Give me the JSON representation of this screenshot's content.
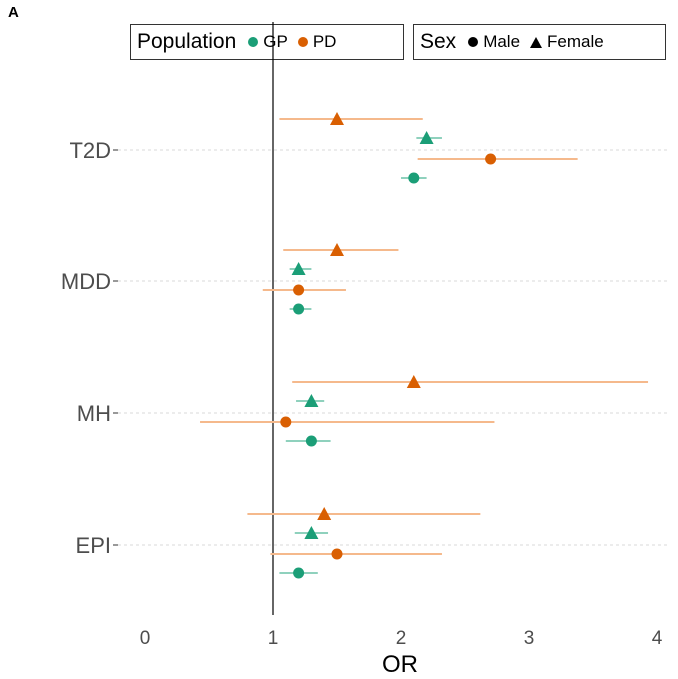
{
  "panel_label": "A",
  "legend": {
    "population_title": "Population",
    "population_items": [
      {
        "label": "GP",
        "color": "#1b9e77"
      },
      {
        "label": "PD",
        "color": "#d95f02"
      }
    ],
    "sex_title": "Sex",
    "sex_items": [
      {
        "label": "Male",
        "shape": "circle"
      },
      {
        "label": "Female",
        "shape": "triangle"
      }
    ]
  },
  "chart_data": {
    "type": "scatter",
    "xlabel": "OR",
    "ylabel": "",
    "xlim": [
      0,
      4
    ],
    "xticks": [
      "0",
      "1",
      "2",
      "3",
      "4"
    ],
    "reference_line": 1,
    "categories": [
      "T2D",
      "MDD",
      "MH",
      "EPI"
    ],
    "colors": {
      "GP": "#1b9e77",
      "PD": "#d95f02"
    },
    "series": [
      {
        "name": "PD",
        "sex": "Female",
        "points": [
          {
            "category": "T2D",
            "or": 1.5,
            "lo": 1.05,
            "hi": 2.17
          },
          {
            "category": "MDD",
            "or": 1.5,
            "lo": 1.08,
            "hi": 1.98
          },
          {
            "category": "MH",
            "or": 2.1,
            "lo": 1.15,
            "hi": 3.93
          },
          {
            "category": "EPI",
            "or": 1.4,
            "lo": 0.8,
            "hi": 2.62
          }
        ]
      },
      {
        "name": "GP",
        "sex": "Female",
        "points": [
          {
            "category": "T2D",
            "or": 2.2,
            "lo": 2.12,
            "hi": 2.32
          },
          {
            "category": "MDD",
            "or": 1.2,
            "lo": 1.13,
            "hi": 1.3
          },
          {
            "category": "MH",
            "or": 1.3,
            "lo": 1.18,
            "hi": 1.4
          },
          {
            "category": "EPI",
            "or": 1.3,
            "lo": 1.17,
            "hi": 1.43
          }
        ]
      },
      {
        "name": "PD",
        "sex": "Male",
        "points": [
          {
            "category": "T2D",
            "or": 2.7,
            "lo": 2.13,
            "hi": 3.38
          },
          {
            "category": "MDD",
            "or": 1.2,
            "lo": 0.92,
            "hi": 1.57
          },
          {
            "category": "MH",
            "or": 1.1,
            "lo": 0.43,
            "hi": 2.73
          },
          {
            "category": "EPI",
            "or": 1.5,
            "lo": 0.98,
            "hi": 2.32
          }
        ]
      },
      {
        "name": "GP",
        "sex": "Male",
        "points": [
          {
            "category": "T2D",
            "or": 2.1,
            "lo": 2.0,
            "hi": 2.2
          },
          {
            "category": "MDD",
            "or": 1.2,
            "lo": 1.13,
            "hi": 1.3
          },
          {
            "category": "MH",
            "or": 1.3,
            "lo": 1.1,
            "hi": 1.45
          },
          {
            "category": "EPI",
            "or": 1.2,
            "lo": 1.05,
            "hi": 1.35
          }
        ]
      }
    ]
  }
}
